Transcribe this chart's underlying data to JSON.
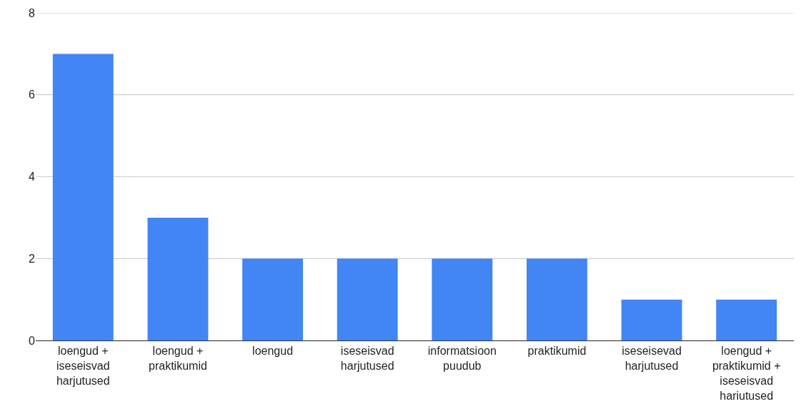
{
  "chart_data": {
    "type": "bar",
    "categories": [
      "loengud + iseseisvad harjutused",
      "loengud + praktikumid",
      "loengud",
      "iseseisvad harjutused",
      "informatsioon puudub",
      "praktikumid",
      "iseseisevad harjutused",
      "loengud + praktikumid + iseseisvad hariutused"
    ],
    "values": [
      7,
      3,
      2,
      2,
      2,
      2,
      1,
      1
    ],
    "color": "#4285f4",
    "ylim": [
      0,
      8
    ],
    "yticks": [
      0,
      2,
      4,
      6,
      8
    ],
    "grid": "y"
  }
}
